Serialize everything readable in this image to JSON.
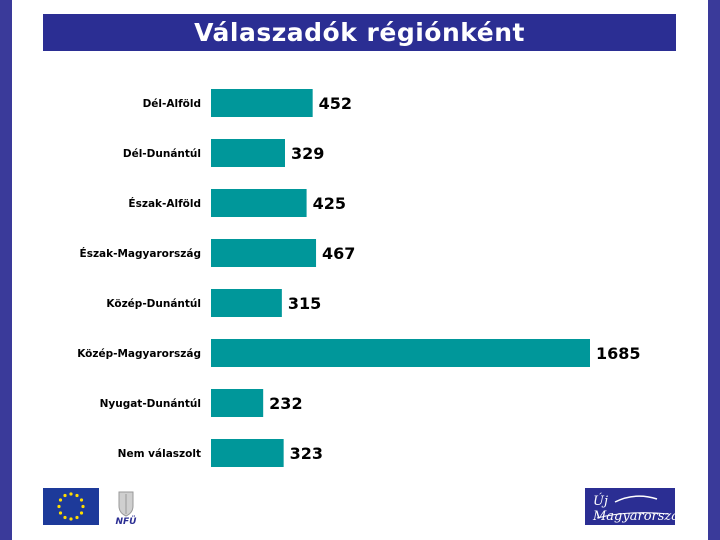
{
  "header": {
    "title": "Válaszadók régiónként"
  },
  "colors": {
    "bar": "#00979a",
    "frame": "#3a3a9a",
    "title_band": "#2b2e93"
  },
  "logos": {
    "nfu_text": "NFÜ",
    "um_text": "Új Magyarország"
  },
  "chart_data": {
    "type": "bar",
    "orientation": "horizontal",
    "categories": [
      "Dél-Alföld",
      "Dél-Dunántúl",
      "Észak-Alföld",
      "Észak-Magyarország",
      "Közép-Dunántúl",
      "Közép-Magyarország",
      "Nyugat-Dunántúl",
      "Nem válaszolt"
    ],
    "values": [
      452,
      329,
      425,
      467,
      315,
      1685,
      232,
      323
    ],
    "title": "Válaszadók régiónként",
    "xlabel": "",
    "ylabel": "",
    "xlim": [
      0,
      1685
    ],
    "grid": false,
    "legend": "none"
  }
}
